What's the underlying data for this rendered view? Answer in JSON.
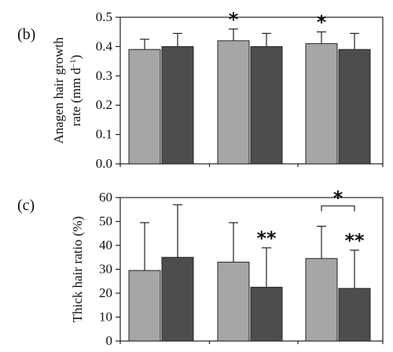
{
  "chart_data": [
    {
      "type": "bar",
      "panel_label": "(b)",
      "ylabel": "Anagen hair growth\nrate (mm d",
      "ylabel_sup": "–1",
      "ylabel_close": ")",
      "ylim": [
        0,
        0.5
      ],
      "yticks": [
        "0.0",
        "0.1",
        "0.2",
        "0.3",
        "0.4",
        "0.5"
      ],
      "ytick_values": [
        0,
        0.1,
        0.2,
        0.3,
        0.4,
        0.5
      ],
      "grid": false,
      "categories": [
        "",
        "",
        ""
      ],
      "series": [
        {
          "values": [
            0.39,
            0.42,
            0.41
          ],
          "errors": [
            0.035,
            0.04,
            0.04
          ],
          "color": "#a6a6a6"
        },
        {
          "values": [
            0.4,
            0.4,
            0.39
          ],
          "errors": [
            0.045,
            0.045,
            0.055
          ],
          "color": "#4d4d4d"
        }
      ],
      "annotations": [
        {
          "text": "*",
          "group": 1,
          "series": 0
        },
        {
          "text": "*",
          "group": 2,
          "series": 0
        }
      ]
    },
    {
      "type": "bar",
      "panel_label": "(c)",
      "ylabel": "Thick hair ratio (%)",
      "ylim": [
        0,
        60
      ],
      "yticks": [
        "0",
        "10",
        "20",
        "30",
        "40",
        "50",
        "60"
      ],
      "ytick_values": [
        0,
        10,
        20,
        30,
        40,
        50,
        60
      ],
      "grid": false,
      "categories": [
        "",
        "",
        ""
      ],
      "series": [
        {
          "values": [
            29.5,
            33,
            34.5
          ],
          "errors": [
            20,
            16.5,
            13.5
          ],
          "color": "#a6a6a6"
        },
        {
          "values": [
            35,
            22.5,
            22
          ],
          "errors": [
            22,
            16.5,
            16
          ],
          "color": "#4d4d4d"
        }
      ],
      "annotations": [
        {
          "text": "**",
          "group": 1,
          "series": 1
        },
        {
          "text": "**",
          "group": 2,
          "series": 1
        },
        {
          "text": "*",
          "group": 2,
          "bracket": true
        }
      ]
    }
  ]
}
